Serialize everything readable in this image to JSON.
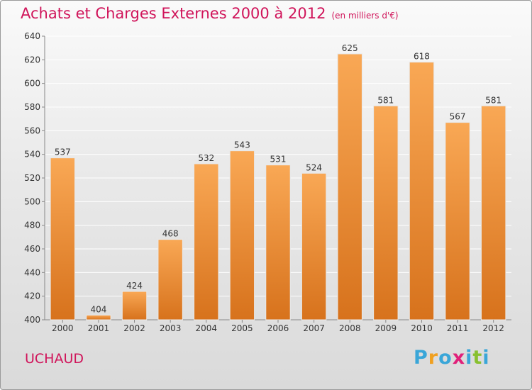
{
  "header": {
    "title": "Achats et Charges Externes 2000 à 2012",
    "subtitle": "(en milliers d'€)"
  },
  "place": "UCHAUD",
  "logo": {
    "letters": [
      "P",
      "r",
      "o",
      "x",
      "i",
      "t",
      "i"
    ],
    "colors": [
      "#3aa6d8",
      "#f0a020",
      "#3aa6d8",
      "#e0207a",
      "#3aa6d8",
      "#88c030",
      "#3aa6d8"
    ]
  },
  "colors": {
    "bar_light": "#f9a855",
    "bar_dark": "#d7721c"
  },
  "chart_data": {
    "type": "bar",
    "categories": [
      "2000",
      "2001",
      "2002",
      "2003",
      "2004",
      "2005",
      "2006",
      "2007",
      "2008",
      "2009",
      "2010",
      "2011",
      "2012"
    ],
    "values": [
      537,
      404,
      424,
      468,
      532,
      543,
      531,
      524,
      625,
      581,
      618,
      567,
      581
    ],
    "title": "Achats et Charges Externes 2000 à 2012",
    "ylim": [
      400,
      640
    ],
    "yticks": [
      400,
      420,
      440,
      460,
      480,
      500,
      520,
      540,
      560,
      580,
      600,
      620,
      640
    ],
    "grid": true
  }
}
